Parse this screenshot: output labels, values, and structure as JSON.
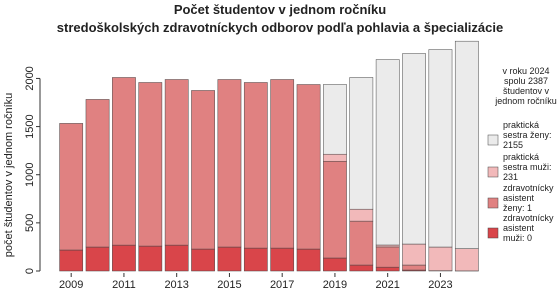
{
  "chart_data": {
    "type": "stacked_bar",
    "title": "Počet  študentov v jednom ročníku",
    "subtitle": "stredoškolských zdravotníckych odborov podľa pohlavia a špecializácie",
    "y_label": "počet študentov v jednom ročníku",
    "annotation": "v roku 2024 spolu 2387 študentov v jednom ročníku",
    "categories": [
      "2009",
      null,
      "2011",
      null,
      "2013",
      null,
      "2015",
      null,
      "2017",
      null,
      "2019",
      null,
      "2021",
      null,
      "2023",
      null
    ],
    "series": [
      {
        "name": "zdravotnícky asistent muži: 0",
        "color": "#d9454a",
        "values": [
          218,
          249,
          269,
          259,
          269,
          228,
          249,
          238,
          238,
          228,
          135,
          62,
          40,
          10,
          0,
          0
        ]
      },
      {
        "name": "zdravotnícky asistent ženy: 1",
        "color": "#e08181",
        "values": [
          1315,
          1533,
          1741,
          1699,
          1720,
          1647,
          1740,
          1720,
          1751,
          1709,
          1005,
          456,
          210,
          52,
          3,
          1
        ]
      },
      {
        "name": "praktická sestra muži: 231",
        "color": "#f2b9ba",
        "values": [
          0,
          0,
          0,
          0,
          0,
          0,
          0,
          0,
          0,
          0,
          73,
          124,
          20,
          218,
          246,
          231
        ]
      },
      {
        "name": "praktická sestra ženy: 2155",
        "color": "#ebebeb",
        "values": [
          0,
          0,
          0,
          0,
          0,
          0,
          0,
          0,
          0,
          0,
          724,
          1368,
          1926,
          1978,
          2051,
          2155
        ]
      }
    ],
    "ylim": [
      0,
      2420
    ],
    "yticks": [
      0,
      500,
      1000,
      1500,
      2000
    ],
    "grid": false
  }
}
